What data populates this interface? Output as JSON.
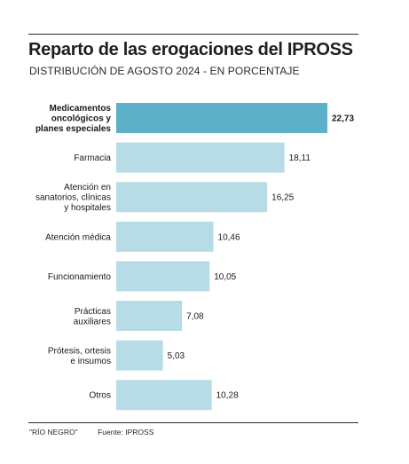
{
  "chart_data": {
    "type": "bar",
    "orientation": "horizontal",
    "title": "Reparto de las erogaciones del IPROSS",
    "subtitle": "DISTRIBUCIÓN DE AGOSTO 2024 - EN PORCENTAJE",
    "categories": [
      [
        "Medicamentos",
        "oncológicos y",
        "planes especiales"
      ],
      [
        "Farmacia"
      ],
      [
        "Atención en",
        "sanatorios, clínicas",
        "y hospitales"
      ],
      [
        "Atención médica"
      ],
      [
        "Funcionamiento"
      ],
      [
        "Prácticas",
        "auxiliares"
      ],
      [
        "Prótesis, ortesis",
        "e insumos"
      ],
      [
        "Otros"
      ]
    ],
    "values": [
      22.73,
      18.11,
      16.25,
      10.46,
      10.05,
      7.08,
      5.03,
      10.28
    ],
    "value_labels": [
      "22,73",
      "18,11",
      "16,25",
      "10,46",
      "10,05",
      "7,08",
      "5,03",
      "10,28"
    ],
    "highlight_index": 0,
    "xlim": [
      0,
      22.73
    ],
    "colors": {
      "bar": "#b8dce6",
      "highlight": "#5cb0c8",
      "text": "#1a1a1a"
    }
  },
  "footer": {
    "credit": "\"RÍO NEGRO\"",
    "source": "Fuente: IPROSS"
  }
}
